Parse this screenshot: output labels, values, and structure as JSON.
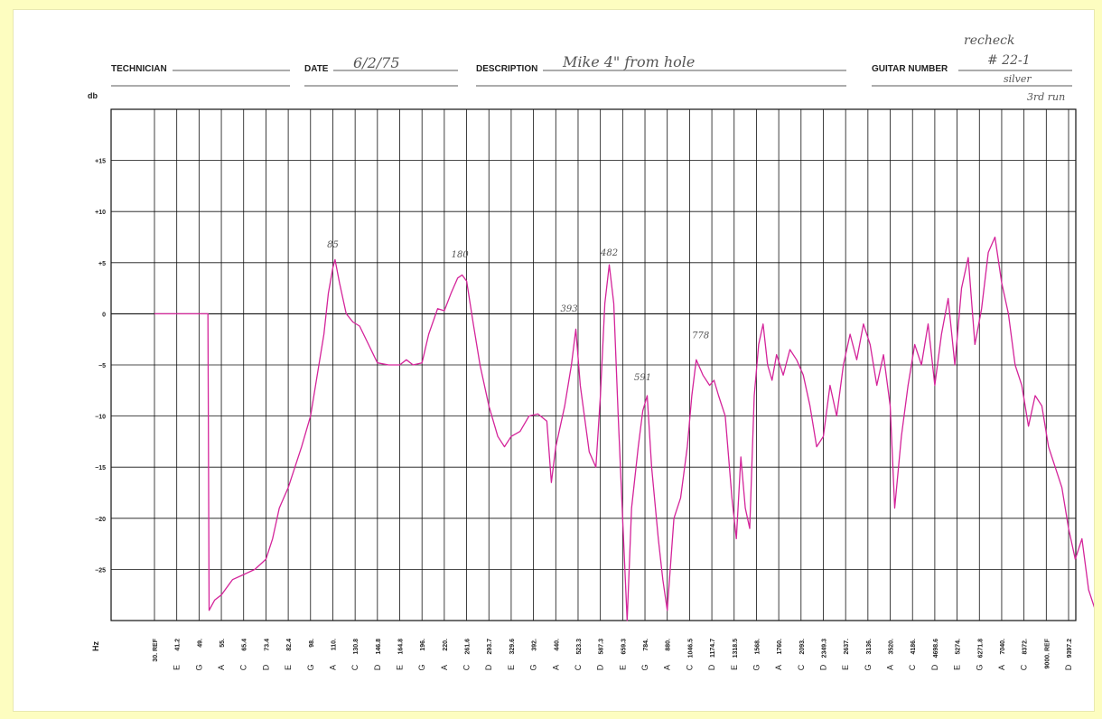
{
  "form": {
    "technician_label": "TECHNICIAN",
    "technician_value": "",
    "date_label": "DATE",
    "date_value": "6/2/75",
    "description_label": "DESCRIPTION",
    "description_value": "Mike 4\" from hole",
    "guitar_number_label": "GUITAR NUMBER",
    "guitar_number_value": "",
    "handwritten_recheck": "recheck",
    "handwritten_number": "# 22-1",
    "handwritten_silver": "silver",
    "handwritten_run": "3rd run"
  },
  "colors": {
    "trace": "#d4249a",
    "grid": "#111111",
    "paper": "#ffffff",
    "border": "#fdfdc0"
  },
  "chart_data": {
    "type": "line",
    "ylabel": "db",
    "xlabel": "Hz",
    "ylim": [
      -30,
      20
    ],
    "y_ticks": [
      {
        "value": 15,
        "label": "+15"
      },
      {
        "value": 10,
        "label": "+10"
      },
      {
        "value": 5,
        "label": "+5"
      },
      {
        "value": 0,
        "label": "0"
      },
      {
        "value": -5,
        "label": "−5"
      },
      {
        "value": -10,
        "label": "−10"
      },
      {
        "value": -15,
        "label": "−15"
      },
      {
        "value": -20,
        "label": "−20"
      },
      {
        "value": -25,
        "label": "−25"
      }
    ],
    "x_ticks": [
      {
        "freq": "30. REF",
        "note": ""
      },
      {
        "freq": "41.2",
        "note": "E"
      },
      {
        "freq": "49.",
        "note": "G"
      },
      {
        "freq": "55.",
        "note": "A"
      },
      {
        "freq": "65.4",
        "note": "C"
      },
      {
        "freq": "73.4",
        "note": "D"
      },
      {
        "freq": "82.4",
        "note": "E"
      },
      {
        "freq": "98.",
        "note": "G"
      },
      {
        "freq": "110.",
        "note": "A"
      },
      {
        "freq": "130.8",
        "note": "C"
      },
      {
        "freq": "146.8",
        "note": "D"
      },
      {
        "freq": "164.8",
        "note": "E"
      },
      {
        "freq": "196.",
        "note": "G"
      },
      {
        "freq": "220.",
        "note": "A"
      },
      {
        "freq": "261.6",
        "note": "C"
      },
      {
        "freq": "293.7",
        "note": "D"
      },
      {
        "freq": "329.6",
        "note": "E"
      },
      {
        "freq": "392.",
        "note": "G"
      },
      {
        "freq": "440.",
        "note": "A"
      },
      {
        "freq": "523.3",
        "note": "C"
      },
      {
        "freq": "587.3",
        "note": "D"
      },
      {
        "freq": "659.3",
        "note": "E"
      },
      {
        "freq": "784.",
        "note": "G"
      },
      {
        "freq": "880.",
        "note": "A"
      },
      {
        "freq": "1046.5",
        "note": "C"
      },
      {
        "freq": "1174.7",
        "note": "D"
      },
      {
        "freq": "1318.5",
        "note": "E"
      },
      {
        "freq": "1568.",
        "note": "G"
      },
      {
        "freq": "1760.",
        "note": "A"
      },
      {
        "freq": "2093.",
        "note": "C"
      },
      {
        "freq": "2349.3",
        "note": "D"
      },
      {
        "freq": "2637.",
        "note": "E"
      },
      {
        "freq": "3136.",
        "note": "G"
      },
      {
        "freq": "3520.",
        "note": "A"
      },
      {
        "freq": "4186.",
        "note": "C"
      },
      {
        "freq": "4698.6",
        "note": "D"
      },
      {
        "freq": "5274.",
        "note": "E"
      },
      {
        "freq": "6271.8",
        "note": "G"
      },
      {
        "freq": "7040.",
        "note": "A"
      },
      {
        "freq": "8372.",
        "note": "C"
      },
      {
        "freq": "9000. REF",
        "note": ""
      },
      {
        "freq": "9397.2",
        "note": "D"
      }
    ],
    "series": [
      {
        "points": [
          [
            0.0,
            0
          ],
          [
            2.0,
            0
          ],
          [
            2.4,
            0
          ],
          [
            2.45,
            -29
          ],
          [
            2.7,
            -28
          ],
          [
            3.0,
            -27.5
          ],
          [
            3.5,
            -26
          ],
          [
            4.0,
            -25.5
          ],
          [
            4.5,
            -25
          ],
          [
            5.0,
            -24
          ],
          [
            5.3,
            -22
          ],
          [
            5.6,
            -19
          ],
          [
            6.0,
            -17
          ],
          [
            6.3,
            -15
          ],
          [
            6.6,
            -13
          ],
          [
            7.0,
            -10
          ],
          [
            7.3,
            -6
          ],
          [
            7.6,
            -2
          ],
          [
            7.8,
            2
          ],
          [
            8.0,
            4.5
          ],
          [
            8.1,
            5.3
          ],
          [
            8.3,
            3
          ],
          [
            8.6,
            0
          ],
          [
            8.9,
            -0.8
          ],
          [
            9.2,
            -1.2
          ],
          [
            9.6,
            -3
          ],
          [
            10.0,
            -4.8
          ],
          [
            10.5,
            -5
          ],
          [
            11.0,
            -5
          ],
          [
            11.3,
            -4.5
          ],
          [
            11.6,
            -5
          ],
          [
            12.0,
            -4.8
          ],
          [
            12.3,
            -2
          ],
          [
            12.7,
            0.5
          ],
          [
            13.0,
            0.3
          ],
          [
            13.3,
            2
          ],
          [
            13.6,
            3.5
          ],
          [
            13.8,
            3.8
          ],
          [
            14.0,
            3.2
          ],
          [
            14.3,
            -1
          ],
          [
            14.6,
            -5
          ],
          [
            15.0,
            -9
          ],
          [
            15.4,
            -12
          ],
          [
            15.7,
            -13
          ],
          [
            16.0,
            -12
          ],
          [
            16.4,
            -11.5
          ],
          [
            16.8,
            -10
          ],
          [
            17.2,
            -9.8
          ],
          [
            17.6,
            -10.5
          ],
          [
            17.8,
            -16.5
          ],
          [
            18.0,
            -13
          ],
          [
            18.4,
            -9
          ],
          [
            18.7,
            -5
          ],
          [
            18.9,
            -1.5
          ],
          [
            19.1,
            -7
          ],
          [
            19.5,
            -13.5
          ],
          [
            19.8,
            -15
          ],
          [
            20.0,
            -8
          ],
          [
            20.2,
            1
          ],
          [
            20.4,
            4.8
          ],
          [
            20.6,
            1
          ],
          [
            20.8,
            -10
          ],
          [
            21.0,
            -20
          ],
          [
            21.2,
            -30
          ],
          [
            21.4,
            -19
          ],
          [
            21.7,
            -13
          ],
          [
            21.9,
            -9.5
          ],
          [
            22.1,
            -8
          ],
          [
            22.3,
            -15
          ],
          [
            22.6,
            -22
          ],
          [
            22.8,
            -26
          ],
          [
            23.0,
            -29
          ],
          [
            23.3,
            -20
          ],
          [
            23.6,
            -18
          ],
          [
            23.9,
            -13
          ],
          [
            24.1,
            -8
          ],
          [
            24.3,
            -4.5
          ],
          [
            24.6,
            -6
          ],
          [
            24.9,
            -7
          ],
          [
            25.1,
            -6.5
          ],
          [
            25.3,
            -8
          ],
          [
            25.6,
            -10
          ],
          [
            25.9,
            -18
          ],
          [
            26.1,
            -22
          ],
          [
            26.3,
            -14
          ],
          [
            26.5,
            -19
          ],
          [
            26.7,
            -21
          ],
          [
            26.9,
            -8
          ],
          [
            27.1,
            -3
          ],
          [
            27.3,
            -1
          ],
          [
            27.5,
            -5
          ],
          [
            27.7,
            -6.5
          ],
          [
            27.9,
            -4
          ],
          [
            28.2,
            -6
          ],
          [
            28.5,
            -3.5
          ],
          [
            28.8,
            -4.5
          ],
          [
            29.1,
            -6
          ],
          [
            29.4,
            -9
          ],
          [
            29.7,
            -13
          ],
          [
            30.0,
            -12
          ],
          [
            30.3,
            -7
          ],
          [
            30.6,
            -10
          ],
          [
            30.9,
            -5
          ],
          [
            31.2,
            -2
          ],
          [
            31.5,
            -4.5
          ],
          [
            31.8,
            -1
          ],
          [
            32.1,
            -3
          ],
          [
            32.4,
            -7
          ],
          [
            32.7,
            -4
          ],
          [
            33.0,
            -9
          ],
          [
            33.2,
            -19
          ],
          [
            33.5,
            -12
          ],
          [
            33.8,
            -7
          ],
          [
            34.1,
            -3
          ],
          [
            34.4,
            -5
          ],
          [
            34.7,
            -1
          ],
          [
            35.0,
            -7
          ],
          [
            35.3,
            -2
          ],
          [
            35.6,
            1.5
          ],
          [
            35.9,
            -5
          ],
          [
            36.2,
            2.5
          ],
          [
            36.5,
            5.5
          ],
          [
            36.8,
            -3
          ],
          [
            37.1,
            0.5
          ],
          [
            37.4,
            6
          ],
          [
            37.7,
            7.5
          ],
          [
            38.0,
            3
          ],
          [
            38.3,
            0
          ],
          [
            38.6,
            -5
          ],
          [
            38.9,
            -7
          ],
          [
            39.2,
            -11
          ],
          [
            39.5,
            -8
          ],
          [
            39.8,
            -9
          ],
          [
            40.1,
            -13
          ],
          [
            40.4,
            -15
          ],
          [
            40.7,
            -17
          ],
          [
            41.0,
            -21
          ],
          [
            41.3,
            -24
          ],
          [
            41.6,
            -22
          ],
          [
            41.9,
            -27
          ],
          [
            42.2,
            -29
          ],
          [
            42.5,
            -30
          ]
        ]
      }
    ],
    "annotations": [
      {
        "text": "85",
        "x": 8.0,
        "y": 6.5
      },
      {
        "text": "180",
        "x": 13.7,
        "y": 5.5
      },
      {
        "text": "393",
        "x": 18.6,
        "y": 0.2
      },
      {
        "text": "482",
        "x": 20.4,
        "y": 5.7
      },
      {
        "text": "591",
        "x": 21.9,
        "y": -6.5
      },
      {
        "text": "778",
        "x": 24.5,
        "y": -2.4
      }
    ]
  }
}
